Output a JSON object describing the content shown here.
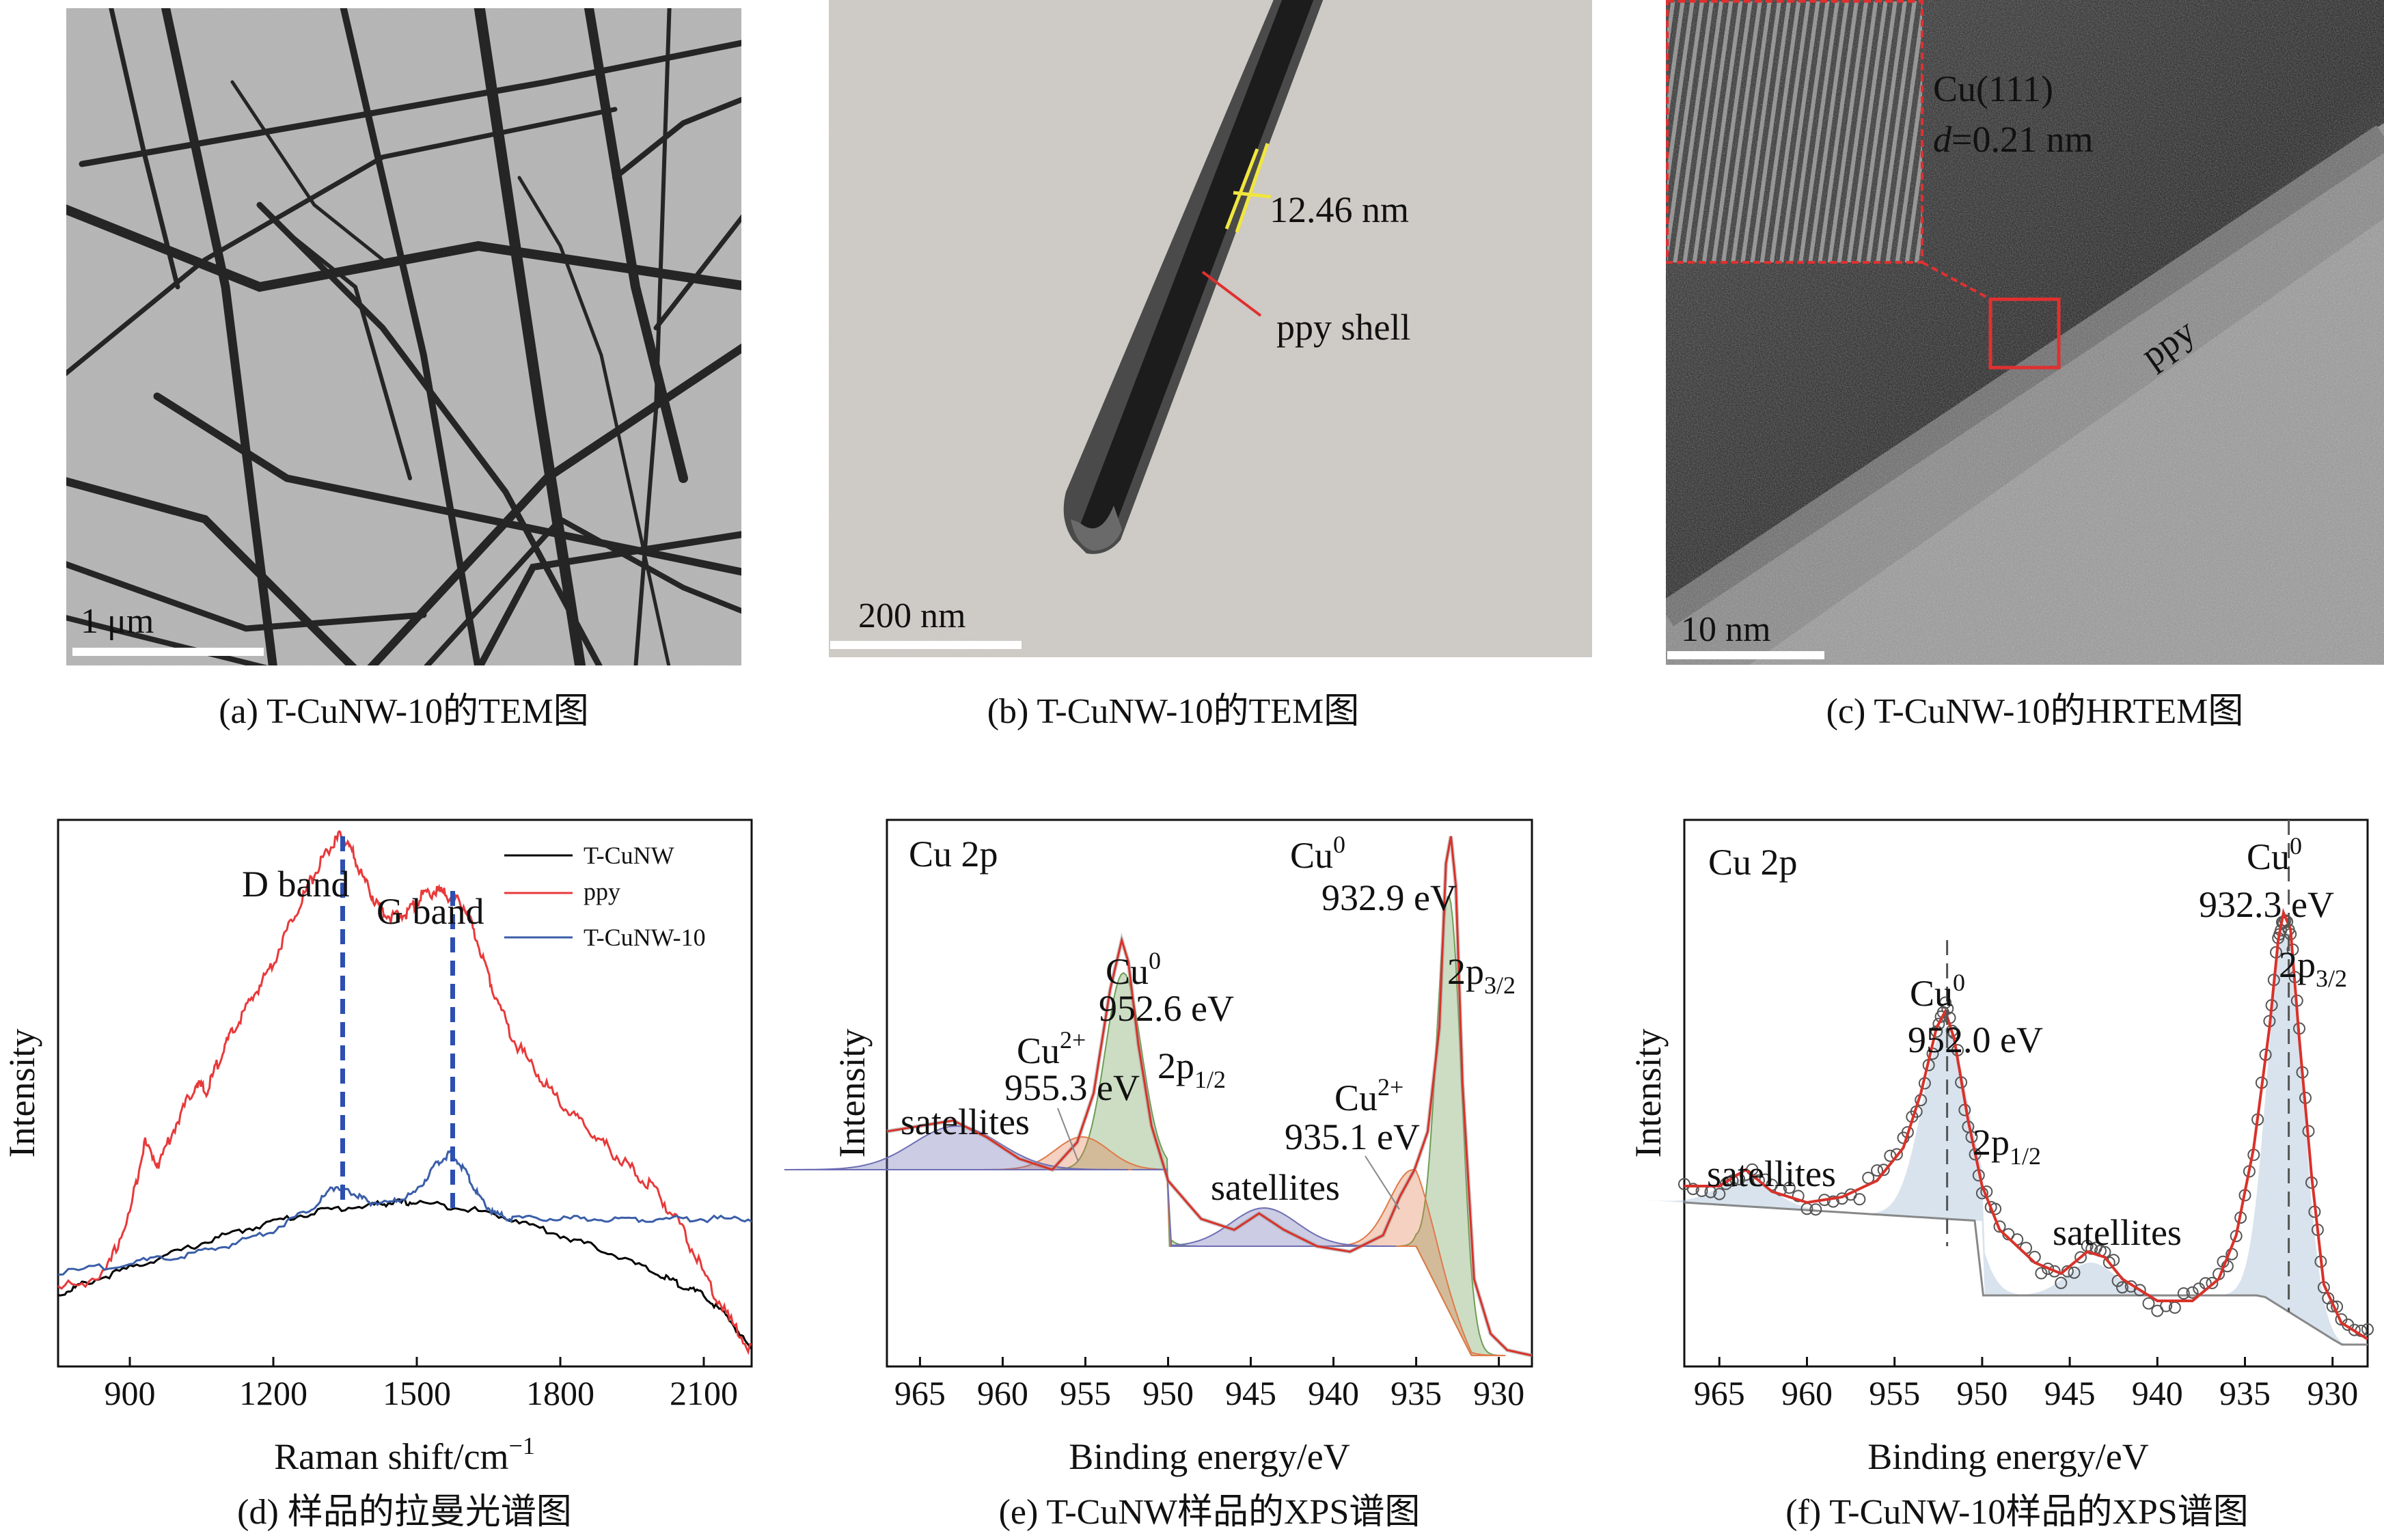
{
  "panels": {
    "a": {
      "caption": "(a) T-CuNW-10的TEM图",
      "scalebar": "1 μm"
    },
    "b": {
      "caption": "(b) T-CuNW-10的TEM图",
      "scalebar": "200 nm",
      "thickness_label": "12.46 nm",
      "shell_label": "ppy shell"
    },
    "c": {
      "caption": "(c) T-CuNW-10的HRTEM图",
      "scalebar": "10 nm",
      "plane_label": "Cu(111)",
      "d_label": "d",
      "d_value": "=0.21 nm",
      "layer_label": "ppy"
    },
    "d": {
      "caption": "(d) 样品的拉曼光谱图"
    },
    "e": {
      "caption": "(e) T-CuNW样品的XPS谱图"
    },
    "f": {
      "caption": "(f) T-CuNW-10样品的XPS谱图"
    }
  },
  "chart_data": [
    {
      "type": "line",
      "id": "d",
      "xlabel": "Raman shift/cm",
      "xlabel_sup": "−1",
      "ylabel": "Intensity",
      "xlim": [
        750,
        2200
      ],
      "ylim": [
        0,
        1
      ],
      "xticks": [
        "900",
        "1200",
        "1500",
        "1800",
        "2100"
      ],
      "annotations": {
        "d_band": "D band",
        "g_band": "G band",
        "d_band_x": 1345,
        "g_band_x": 1575
      },
      "series": [
        {
          "name": "T-CuNW",
          "color": "#000000",
          "x": [
            750,
            800,
            900,
            1000,
            1100,
            1200,
            1300,
            1400,
            1450,
            1500,
            1600,
            1700,
            1800,
            1900,
            2000,
            2050,
            2100,
            2150,
            2200
          ],
          "y": [
            0.13,
            0.15,
            0.18,
            0.21,
            0.24,
            0.265,
            0.285,
            0.295,
            0.3,
            0.3,
            0.29,
            0.27,
            0.24,
            0.21,
            0.17,
            0.15,
            0.13,
            0.09,
            0.03
          ]
        },
        {
          "name": "ppy",
          "color": "#e8393a",
          "x": [
            750,
            850,
            900,
            930,
            960,
            1000,
            1040,
            1060,
            1090,
            1120,
            1160,
            1200,
            1240,
            1280,
            1310,
            1340,
            1360,
            1390,
            1420,
            1450,
            1480,
            1510,
            1540,
            1570,
            1600,
            1630,
            1660,
            1700,
            1750,
            1800,
            1850,
            1900,
            1950,
            2000,
            2050,
            2100,
            2150,
            2200
          ],
          "y": [
            0.14,
            0.17,
            0.28,
            0.41,
            0.37,
            0.45,
            0.52,
            0.5,
            0.57,
            0.62,
            0.68,
            0.74,
            0.82,
            0.89,
            0.94,
            0.97,
            0.95,
            0.89,
            0.84,
            0.82,
            0.83,
            0.86,
            0.87,
            0.86,
            0.84,
            0.77,
            0.69,
            0.6,
            0.54,
            0.48,
            0.44,
            0.4,
            0.36,
            0.32,
            0.26,
            0.17,
            0.09,
            0.03
          ]
        },
        {
          "name": "T-CuNW-10",
          "color": "#3b5ea8",
          "x": [
            750,
            900,
            1000,
            1100,
            1200,
            1280,
            1330,
            1360,
            1400,
            1450,
            1500,
            1540,
            1570,
            1600,
            1630,
            1660,
            1700,
            1800,
            1900,
            2000,
            2100,
            2200
          ],
          "y": [
            0.17,
            0.19,
            0.2,
            0.22,
            0.25,
            0.29,
            0.33,
            0.32,
            0.3,
            0.3,
            0.32,
            0.37,
            0.39,
            0.36,
            0.31,
            0.28,
            0.27,
            0.27,
            0.27,
            0.27,
            0.27,
            0.27
          ]
        }
      ]
    },
    {
      "type": "line",
      "id": "e",
      "xlabel": "Binding energy/eV",
      "ylabel": "Intensity",
      "xlim": [
        967,
        928
      ],
      "ylim": [
        0,
        1
      ],
      "xticks": [
        "965",
        "960",
        "955",
        "950",
        "945",
        "940",
        "935",
        "930"
      ],
      "corner_label": "Cu 2p",
      "annotations": {
        "cu0_top": "Cu",
        "cu0_top_sup": "0",
        "cu0_top_ev": "932.9 eV",
        "p32": "2p",
        "p32_sub": "3/2",
        "cu0_mid": "Cu",
        "cu0_mid_sup": "0",
        "cu0_mid_ev": "952.6 eV",
        "cu2_left": "Cu",
        "cu2_left_sup": "2+",
        "cu2_left_ev": "955.3 eV",
        "p12": "2p",
        "p12_sub": "1/2",
        "cu2_right": "Cu",
        "cu2_right_sup": "2+",
        "cu2_right_ev": "935.1 eV",
        "sat_left": "satellites",
        "sat_right": "satellites"
      },
      "series": [
        {
          "name": "",
          "color": "#d8322a",
          "x": [
            967,
            965,
            963,
            961,
            959,
            957,
            955.5,
            954.5,
            953.5,
            952.8,
            952.4,
            951.8,
            951,
            950,
            948,
            946,
            944.5,
            943,
            941,
            939,
            937,
            936,
            935.1,
            934.3,
            933.6,
            933.2,
            932.9,
            932.6,
            932.2,
            931.5,
            930.5,
            929.5,
            928
          ],
          "y": [
            0.43,
            0.44,
            0.45,
            0.42,
            0.38,
            0.36,
            0.41,
            0.5,
            0.69,
            0.78,
            0.74,
            0.59,
            0.44,
            0.34,
            0.27,
            0.25,
            0.28,
            0.25,
            0.22,
            0.21,
            0.24,
            0.31,
            0.36,
            0.43,
            0.62,
            0.92,
            0.97,
            0.88,
            0.52,
            0.16,
            0.06,
            0.03,
            0.02
          ]
        }
      ]
    },
    {
      "type": "scatter",
      "id": "f",
      "xlabel": "Binding energy/eV",
      "ylabel": "Intensity",
      "xlim": [
        967,
        928
      ],
      "ylim": [
        0,
        1
      ],
      "xticks": [
        "965",
        "960",
        "955",
        "950",
        "945",
        "940",
        "935",
        "930"
      ],
      "corner_label": "Cu 2p",
      "annotations": {
        "cu0_right": "Cu",
        "cu0_right_sup": "0",
        "cu0_right_ev": "932.3 eV",
        "p32": "2p",
        "p32_sub": "3/2",
        "cu0_left": "Cu",
        "cu0_left_sup": "0",
        "cu0_left_ev": "952.0 eV",
        "p12": "2p",
        "p12_sub": "1/2",
        "sat_left": "satellites",
        "sat_right": "satellites",
        "peak_left_x": 952.0,
        "peak_right_x": 932.5
      },
      "series": [
        {
          "name": "",
          "color": "#d8322a",
          "x": [
            967,
            965,
            963.5,
            962,
            960,
            958,
            956,
            954.5,
            953.5,
            952.6,
            952.1,
            951.6,
            950.8,
            950,
            949,
            947,
            945.5,
            944,
            943,
            942,
            940,
            938,
            936.5,
            935.5,
            934.5,
            933.6,
            933.1,
            932.8,
            932.4,
            931.9,
            931.2,
            930.5,
            929.5,
            928
          ],
          "y": [
            0.33,
            0.33,
            0.36,
            0.32,
            0.3,
            0.31,
            0.34,
            0.4,
            0.5,
            0.62,
            0.65,
            0.6,
            0.45,
            0.33,
            0.25,
            0.19,
            0.17,
            0.21,
            0.2,
            0.16,
            0.12,
            0.12,
            0.16,
            0.24,
            0.4,
            0.62,
            0.78,
            0.83,
            0.8,
            0.6,
            0.35,
            0.15,
            0.08,
            0.05
          ]
        }
      ]
    }
  ]
}
